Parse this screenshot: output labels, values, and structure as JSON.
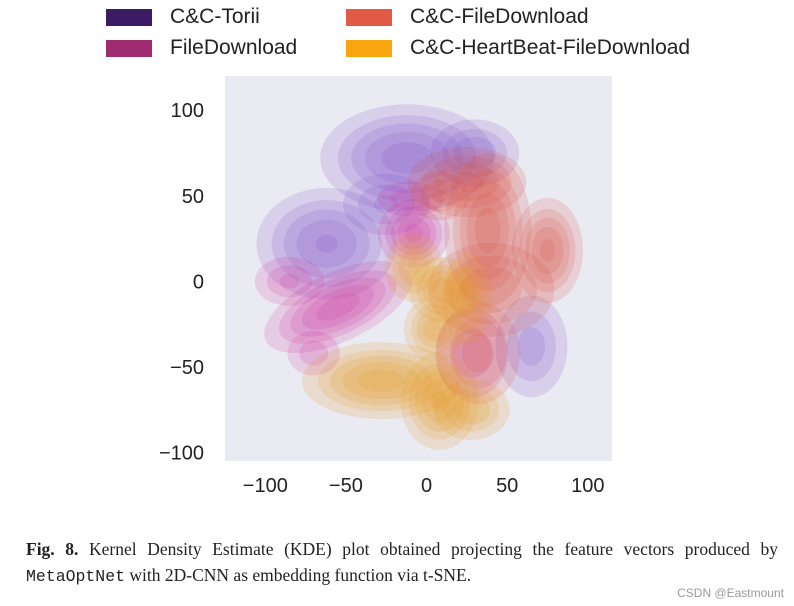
{
  "chart_data": {
    "type": "kde_density",
    "title": "",
    "xlabel": "",
    "ylabel": "",
    "xlim": [
      -125,
      115
    ],
    "ylim": [
      -105,
      120
    ],
    "xticks": [
      -100,
      -50,
      0,
      50,
      100
    ],
    "yticks": [
      100,
      50,
      0,
      -50,
      -100
    ],
    "x_tick_labels": [
      "−100",
      "−50",
      "0",
      "50",
      "100"
    ],
    "y_tick_labels": [
      "100",
      "50",
      "0",
      "−50",
      "−100"
    ],
    "background": "#eaeaf2",
    "grid": false,
    "legend_position": "top",
    "series": [
      {
        "name": "C&C-Torii",
        "color": "#7b4cc9",
        "swatch_color": "#3b1b63",
        "components": [
          {
            "x": -12,
            "y": 72,
            "sx": 24,
            "sy": 14,
            "w": 1.0
          },
          {
            "x": -62,
            "y": 22,
            "sx": 20,
            "sy": 15,
            "w": 0.85
          },
          {
            "x": 30,
            "y": 75,
            "sx": 14,
            "sy": 10,
            "w": 0.55
          },
          {
            "x": 65,
            "y": -38,
            "sx": 12,
            "sy": 16,
            "w": 0.45
          },
          {
            "x": -25,
            "y": 45,
            "sx": 15,
            "sy": 10,
            "w": 0.4
          }
        ]
      },
      {
        "name": "FileDownload",
        "color": "#cc2a9c",
        "swatch_color": "#9e2a6f",
        "components": [
          {
            "x": -55,
            "y": -15,
            "sx": 22,
            "sy": 9,
            "w": 1.0,
            "rot": -25
          },
          {
            "x": -8,
            "y": 28,
            "sx": 10,
            "sy": 9,
            "w": 0.95
          },
          {
            "x": -85,
            "y": 0,
            "sx": 12,
            "sy": 8,
            "w": 0.4
          },
          {
            "x": -10,
            "y": 48,
            "sx": 12,
            "sy": 6,
            "w": 0.35
          },
          {
            "x": -70,
            "y": -42,
            "sx": 10,
            "sy": 8,
            "w": 0.3
          },
          {
            "x": 28,
            "y": -42,
            "sx": 14,
            "sy": 16,
            "w": 0.3
          }
        ]
      },
      {
        "name": "C&C-FileDownload",
        "color": "#dc4a3d",
        "swatch_color": "#e05a45",
        "components": [
          {
            "x": 38,
            "y": 30,
            "sx": 12,
            "sy": 20,
            "w": 1.0
          },
          {
            "x": 75,
            "y": 18,
            "sx": 10,
            "sy": 14,
            "w": 0.9
          },
          {
            "x": 25,
            "y": 58,
            "sx": 18,
            "sy": 10,
            "w": 0.65
          },
          {
            "x": 40,
            "y": -5,
            "sx": 20,
            "sy": 14,
            "w": 0.55
          },
          {
            "x": 32,
            "y": -42,
            "sx": 14,
            "sy": 16,
            "w": 0.45
          },
          {
            "x": 8,
            "y": 50,
            "sx": 10,
            "sy": 8,
            "w": 0.4
          }
        ]
      },
      {
        "name": "C&C-HeartBeat-FileDownload",
        "color": "#e89410",
        "swatch_color": "#f8a50f",
        "components": [
          {
            "x": -28,
            "y": -58,
            "sx": 22,
            "sy": 10,
            "w": 1.0
          },
          {
            "x": 8,
            "y": -70,
            "sx": 11,
            "sy": 13,
            "w": 0.9
          },
          {
            "x": 5,
            "y": -28,
            "sx": 9,
            "sy": 9,
            "w": 0.75
          },
          {
            "x": 10,
            "y": -5,
            "sx": 10,
            "sy": 9,
            "w": 0.75
          },
          {
            "x": -8,
            "y": 8,
            "sx": 9,
            "sy": 10,
            "w": 0.6
          },
          {
            "x": 28,
            "y": -75,
            "sx": 12,
            "sy": 9,
            "w": 0.55
          },
          {
            "x": 25,
            "y": -10,
            "sx": 8,
            "sy": 14,
            "w": 0.5
          }
        ]
      }
    ]
  },
  "caption": {
    "fig_label": "Fig. 8.",
    "text_part1": " Kernel Density Estimate (KDE) plot obtained projecting the feature vectors produced by ",
    "method_name": "MetaOptNet",
    "text_part2": " with 2D-CNN as embedding function via t-SNE."
  },
  "watermark": "CSDN @Eastmount"
}
